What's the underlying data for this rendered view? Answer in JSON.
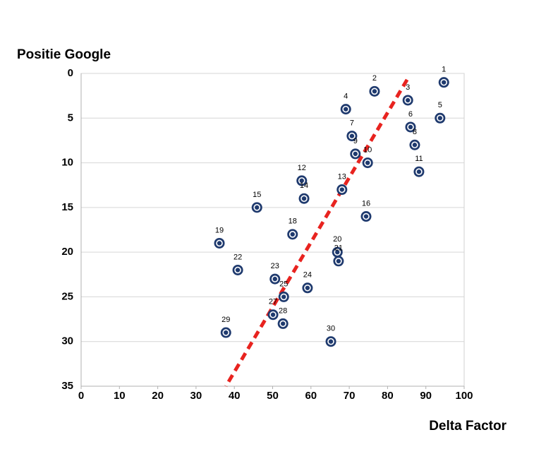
{
  "chart_data": {
    "type": "scatter",
    "xlabel": "Delta Factor",
    "ylabel": "Positie Google",
    "labels": [
      "1",
      "2",
      "3",
      "4",
      "5",
      "6",
      "7",
      "8",
      "9",
      "10",
      "11",
      "12",
      "13",
      "14",
      "15",
      "16",
      "18",
      "19",
      "20",
      "21",
      "22",
      "23",
      "24",
      "25",
      "27",
      "28",
      "29",
      "30"
    ],
    "x": [
      94.7,
      76.6,
      85.3,
      69.1,
      93.7,
      86.0,
      70.7,
      87.1,
      71.6,
      74.8,
      88.2,
      57.6,
      68.1,
      58.2,
      45.9,
      74.4,
      55.2,
      36.1,
      66.9,
      67.2,
      40.9,
      50.6,
      59.1,
      52.9,
      50.1,
      52.7,
      37.8,
      65.2
    ],
    "y": [
      1,
      2,
      3,
      4,
      5,
      6,
      7,
      8,
      9,
      10,
      11,
      12,
      13,
      14,
      15,
      16,
      18,
      19,
      20,
      21,
      22,
      23,
      24,
      25,
      27,
      28,
      29,
      30
    ],
    "color": "#1f3a6e",
    "trendline": {
      "x": [
        85.1,
        37.8
      ],
      "y": [
        0.7,
        35
      ],
      "color": "#e8231f"
    },
    "xlim": [
      0,
      100
    ],
    "xticks": [
      0,
      10,
      20,
      30,
      40,
      50,
      60,
      70,
      80,
      90,
      100
    ],
    "ylim": [
      0,
      35
    ],
    "yticks": [
      0,
      5,
      10,
      15,
      20,
      25,
      30,
      35
    ],
    "y_inverted": true,
    "grid": true
  }
}
